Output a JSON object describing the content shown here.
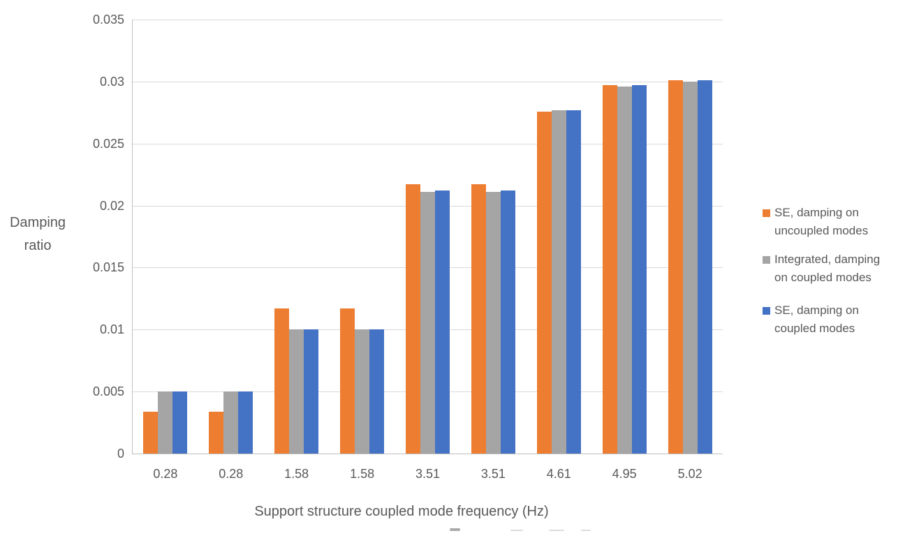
{
  "chart_data": {
    "type": "bar",
    "title": "",
    "xlabel": "Support structure coupled mode frequency (Hz)",
    "ylabel": "Damping ratio",
    "ylabel_lines": [
      "Damping",
      "ratio"
    ],
    "categories": [
      "0.28",
      "0.28",
      "1.58",
      "1.58",
      "3.51",
      "3.51",
      "4.61",
      "4.95",
      "5.02"
    ],
    "series": [
      {
        "name": "SE, damping on uncoupled modes",
        "legend_lines": [
          "SE, damping on",
          "uncoupled modes"
        ],
        "color": "#ED7D31",
        "values": [
          0.0034,
          0.0034,
          0.0117,
          0.0117,
          0.0217,
          0.0217,
          0.0276,
          0.0297,
          0.0301
        ]
      },
      {
        "name": "Integrated, damping on coupled modes",
        "legend_lines": [
          "Integrated, damping",
          "on coupled modes"
        ],
        "color": "#A5A5A5",
        "values": [
          0.005,
          0.005,
          0.01,
          0.01,
          0.0211,
          0.0211,
          0.0277,
          0.0296,
          0.03
        ]
      },
      {
        "name": "SE, damping on coupled modes",
        "legend_lines": [
          "SE, damping on",
          "coupled modes"
        ],
        "color": "#4472C4",
        "values": [
          0.005,
          0.005,
          0.01,
          0.01,
          0.0212,
          0.0212,
          0.0277,
          0.0297,
          0.0301
        ]
      }
    ],
    "ylim": [
      0,
      0.035
    ],
    "yticks": [
      0,
      0.005,
      0.01,
      0.015,
      0.02,
      0.025,
      0.03,
      0.035
    ],
    "ytick_labels": [
      "0",
      "0.005",
      "0.01",
      "0.015",
      "0.02",
      "0.025",
      "0.03",
      "0.035"
    ],
    "grid": true,
    "legend_position": "right"
  },
  "colors": {
    "text": "#595959",
    "gridline": "#D9D9D9",
    "axis_line": "#BFBFBF",
    "background": "#FFFFFF",
    "series_orange": "#ED7D31",
    "series_gray": "#A5A5A5",
    "series_blue": "#4472C4"
  }
}
